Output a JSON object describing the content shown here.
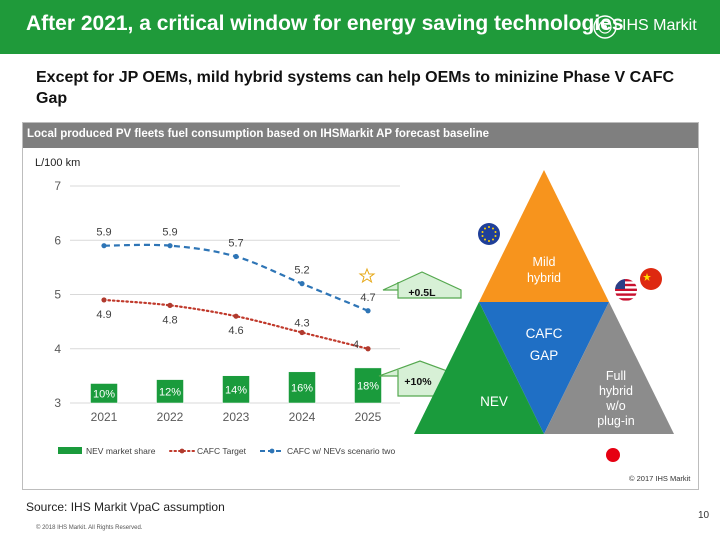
{
  "header": {
    "title": "After 2021, a critical window for energy saving technologies",
    "logo_text": "IHS Markit"
  },
  "subtitle": "Except for JP OEMs, mild hybrid systems can help OEMs to minizine Phase V CAFC Gap",
  "panel_title": "Local produced PV fleets fuel consumption based on IHSMarkit AP forecast baseline",
  "source": "Source: IHS Markit VpaC assumption",
  "footer_copyright": "© 2018 IHS Markit. All Rights Reserved.",
  "page_number": "10",
  "chart_copyright": "© 2017 IHS Markit",
  "chart_data": {
    "type": "bar",
    "ylabel": "L/100 km",
    "ylim": [
      3,
      7
    ],
    "yticks": [
      "3",
      "4",
      "5",
      "6",
      "7"
    ],
    "categories": [
      "2021",
      "2022",
      "2023",
      "2024",
      "2025"
    ],
    "series": [
      {
        "name": "NEV market share",
        "type": "bar",
        "values": [
          10,
          12,
          14,
          16,
          18
        ],
        "labels": [
          "10%",
          "12%",
          "14%",
          "16%",
          "18%"
        ],
        "color": "#1a9b3c"
      },
      {
        "name": "CAFC Target",
        "type": "line",
        "style": "dotted",
        "values": [
          4.9,
          4.8,
          4.6,
          4.3,
          4
        ],
        "labels": [
          "4.9",
          "4.8",
          "4.6",
          "4.3",
          "4"
        ],
        "color": "#c0392b"
      },
      {
        "name": "CAFC w/ NEVs scenario two",
        "type": "line",
        "style": "dashed",
        "values": [
          5.9,
          5.9,
          5.7,
          5.2,
          4.7
        ],
        "labels": [
          "5.9",
          "5.9",
          "5.7",
          "5.2",
          "4.7"
        ],
        "color": "#2e75b6"
      }
    ],
    "annotations": [
      "+0.5L",
      "+10%"
    ],
    "legend_position": "bottom"
  },
  "triangle": {
    "top": "Mild hybrid",
    "center_line1": "CAFC",
    "center_line2": "GAP",
    "left": "NEV",
    "right_lines": [
      "Full",
      "hybrid",
      "w/o",
      "plug-in"
    ],
    "colors": {
      "top": "#f7941d",
      "center": "#1f6fc5",
      "left": "#1a9b3c",
      "right": "#8c8c8c"
    }
  }
}
